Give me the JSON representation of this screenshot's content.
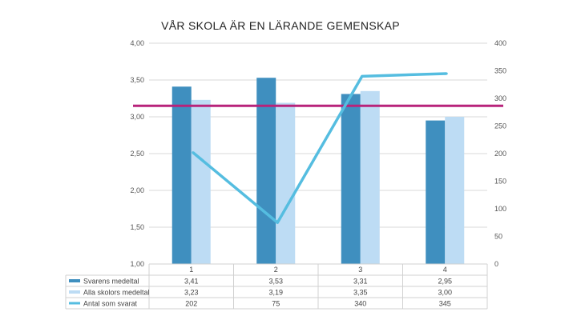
{
  "chart_data": {
    "type": "bar",
    "title": "VÅR SKOLA ÄR EN LÄRANDE GEMENSKAP",
    "categories": [
      "1",
      "2",
      "3",
      "4"
    ],
    "series": [
      {
        "name": "Svarens medeltal",
        "type": "bar",
        "axis": "left",
        "color": "#3f8fbf",
        "values": [
          3.41,
          3.53,
          3.31,
          2.95
        ],
        "labels": [
          "3,41",
          "3,53",
          "3,31",
          "2,95"
        ]
      },
      {
        "name": "Alla skolors medeltal",
        "type": "bar",
        "axis": "left",
        "color": "#bddcf4",
        "values": [
          3.23,
          3.19,
          3.35,
          3.0
        ],
        "labels": [
          "3,23",
          "3,19",
          "3,35",
          "3,00"
        ]
      },
      {
        "name": "Antal som svarat",
        "type": "line",
        "axis": "right",
        "color": "#55bde0",
        "values": [
          202,
          75,
          340,
          345
        ],
        "labels": [
          "202",
          "75",
          "340",
          "345"
        ]
      }
    ],
    "reference_line": {
      "axis": "left",
      "value": 3.15,
      "color": "#b8237a"
    },
    "y_left": {
      "min": 1.0,
      "max": 4.0,
      "step": 0.5,
      "tick_labels": [
        "1,00",
        "1,50",
        "2,00",
        "2,50",
        "3,00",
        "3,50",
        "4,00"
      ]
    },
    "y_right": {
      "min": 0,
      "max": 400,
      "step": 50,
      "tick_labels": [
        "0",
        "50",
        "100",
        "150",
        "200",
        "250",
        "300",
        "350",
        "400"
      ]
    },
    "grid": true,
    "legend": "bottom-left data table"
  }
}
